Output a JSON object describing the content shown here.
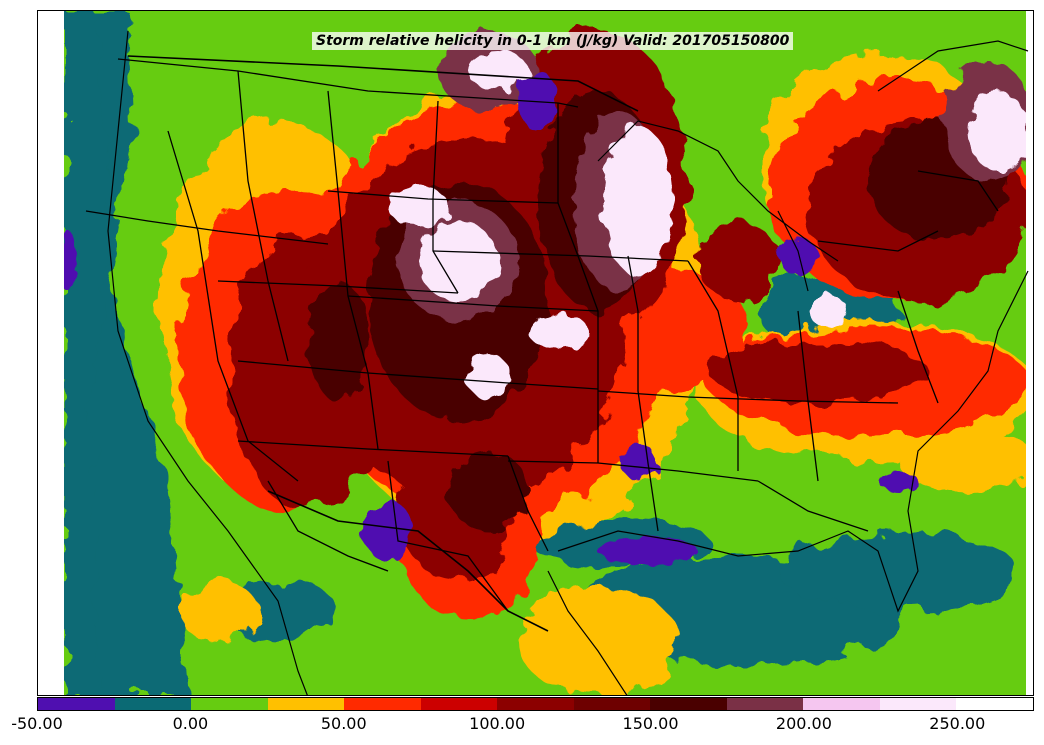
{
  "title": "Storm relative helicity in 0-1 km (J/kg) Valid: 201705150800",
  "map": {
    "region": "Continental United States",
    "boundaries": [
      "coastlines",
      "state-borders",
      "country-borders"
    ]
  },
  "colorbar": {
    "min": -50,
    "max": 275,
    "levels": [
      -50,
      -25,
      0,
      25,
      50,
      75,
      100,
      125,
      150,
      175,
      200,
      225,
      250,
      275
    ],
    "colors": [
      "#4f0fb0",
      "#0b6a74",
      "#66cc11",
      "#ffc000",
      "#ff2a00",
      "#cc0000",
      "#8c0000",
      "#6e0000",
      "#4a0000",
      "#7a3046",
      "#f5c6f0",
      "#fbe8fb",
      "#ffffff"
    ],
    "tick_labels": [
      "-50.00",
      "0.00",
      "50.00",
      "100.00",
      "150.00",
      "200.00",
      "250.00"
    ]
  }
}
